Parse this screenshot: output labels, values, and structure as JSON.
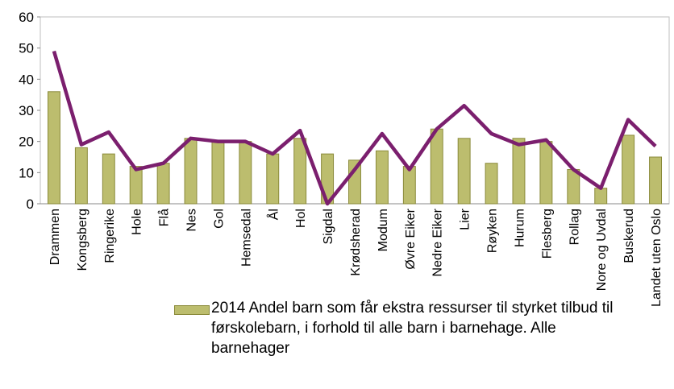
{
  "chart_data": {
    "type": "bar",
    "categories": [
      "Drammen",
      "Kongsberg",
      "Ringerike",
      "Hole",
      "Flå",
      "Nes",
      "Gol",
      "Hemsedal",
      "Ål",
      "Hol",
      "Sigdal",
      "Krødsherad",
      "Modum",
      "Øvre Eiker",
      "Nedre Eiker",
      "Lier",
      "Røyken",
      "Hurum",
      "Flesberg",
      "Rollag",
      "Nore og Uvdal",
      "Buskerud",
      "Landet uten Oslo"
    ],
    "series": [
      {
        "name": "2014 Andel barn som får ekstra ressurser til styrket tilbud til førskolebarn, i forhold til alle barn i barnehage. Alle barnehager",
        "type": "bar",
        "color": "#bcbd6e",
        "values": [
          36,
          18,
          16,
          12,
          13,
          21,
          20,
          20,
          16,
          21,
          16,
          14,
          17,
          12,
          24,
          21,
          13,
          21,
          20,
          11,
          5,
          22,
          15
        ]
      },
      {
        "type": "line",
        "color": "#7b1f6e",
        "values": [
          49,
          19,
          23,
          11,
          13,
          21,
          20,
          20,
          16,
          23.5,
          0,
          11,
          22.5,
          11,
          24,
          31.5,
          22.5,
          19,
          20.5,
          11,
          5,
          27,
          18.5
        ]
      }
    ],
    "ylim": [
      0,
      60
    ],
    "yticks": [
      0,
      10,
      20,
      30,
      40,
      50,
      60
    ],
    "grid": false
  }
}
